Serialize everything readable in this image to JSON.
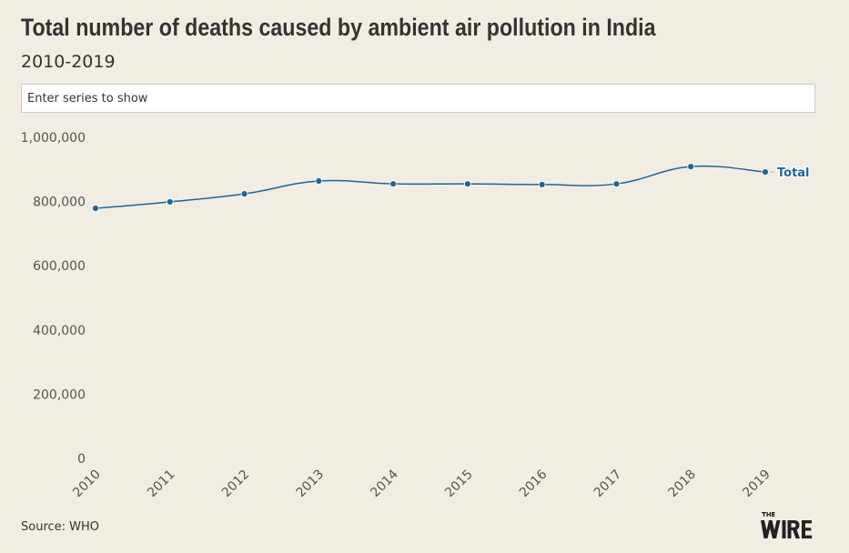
{
  "header": {
    "title": "Total number of deaths caused by ambient air pollution in India",
    "subtitle": "2010-2019"
  },
  "search": {
    "placeholder": "Enter series to show"
  },
  "footer": {
    "source": "Source: WHO",
    "logo_text": "THE WIRE"
  },
  "colors": {
    "line": "#1b6698",
    "background": "#f1ede3"
  },
  "chart_data": {
    "type": "line",
    "title": "Total number of deaths caused by ambient air pollution in India",
    "subtitle": "2010-2019",
    "xlabel": "",
    "ylabel": "",
    "x": [
      "2010",
      "2011",
      "2012",
      "2013",
      "2014",
      "2015",
      "2016",
      "2017",
      "2018",
      "2019"
    ],
    "ylim": [
      0,
      1000000
    ],
    "yticks": [
      0,
      200000,
      400000,
      600000,
      800000,
      1000000
    ],
    "ytick_labels": [
      "0",
      "200,000",
      "400,000",
      "600,000",
      "800,000",
      "1,000,000"
    ],
    "grid": false,
    "series": [
      {
        "name": "Total",
        "values": [
          779000,
          799000,
          824000,
          864000,
          855000,
          855000,
          853000,
          855000,
          909000,
          892000
        ]
      }
    ]
  }
}
